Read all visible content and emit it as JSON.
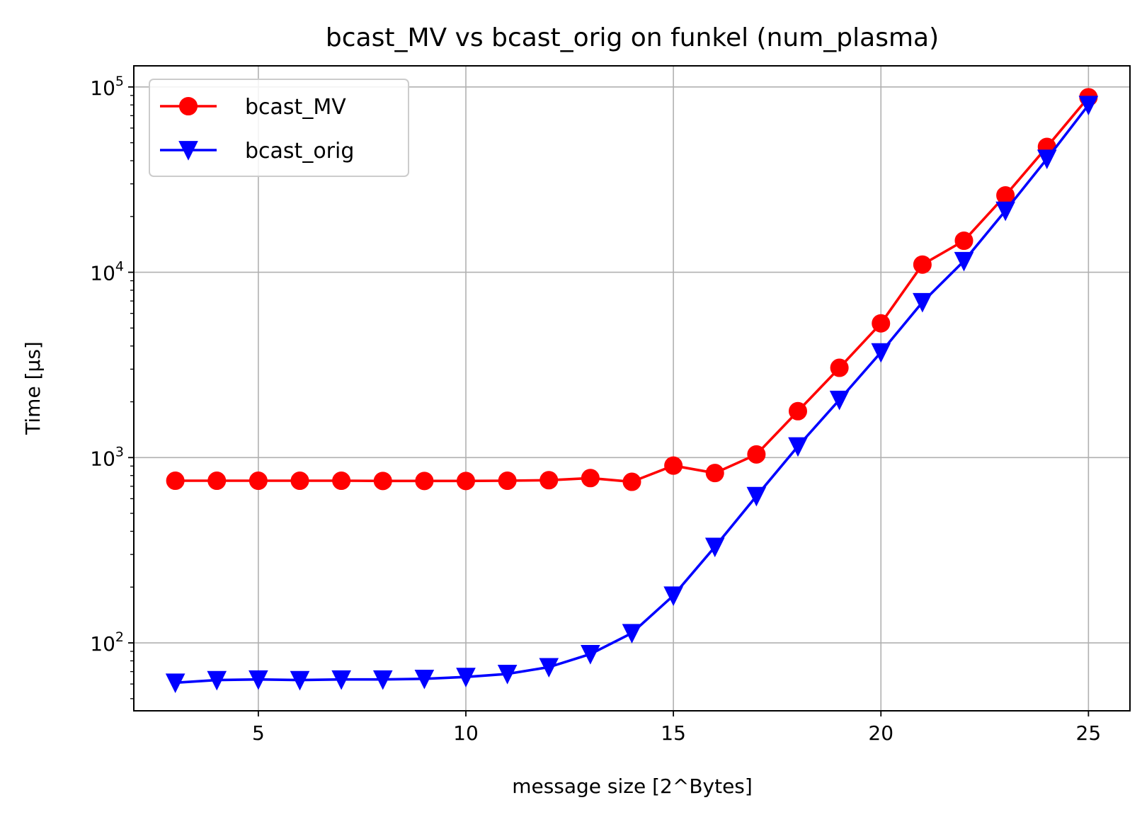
{
  "chart_data": {
    "type": "line",
    "title": "bcast_MV vs bcast_orig on funkel (num_plasma)",
    "xlabel": "message size [2^Bytes]",
    "ylabel": "Time [µs]",
    "yscale": "log",
    "xlim": [
      2,
      26
    ],
    "ylim": [
      43,
      130000
    ],
    "grid": true,
    "legend_position": "upper-left",
    "x_ticks": [
      5,
      10,
      15,
      20,
      25
    ],
    "x_tick_labels": [
      "5",
      "10",
      "15",
      "20",
      "25"
    ],
    "y_ticks": [
      100,
      1000,
      10000,
      100000
    ],
    "y_tick_labels": [
      {
        "base": "10",
        "exp": "2"
      },
      {
        "base": "10",
        "exp": "3"
      },
      {
        "base": "10",
        "exp": "4"
      },
      {
        "base": "10",
        "exp": "5"
      }
    ],
    "x": [
      3,
      4,
      5,
      6,
      7,
      8,
      9,
      10,
      11,
      12,
      13,
      14,
      15,
      16,
      17,
      18,
      19,
      20,
      21,
      22,
      23,
      24,
      25
    ],
    "series": [
      {
        "name": "bcast_MV",
        "color": "#ff0000",
        "marker": "circle",
        "values": [
          750,
          750,
          750,
          750,
          750,
          748,
          748,
          748,
          750,
          755,
          775,
          740,
          905,
          825,
          1040,
          1780,
          3050,
          5300,
          11000,
          14800,
          26000,
          47500,
          88000
        ]
      },
      {
        "name": "bcast_orig",
        "color": "#0000ff",
        "marker": "triangle-down",
        "values": [
          61,
          63,
          63.5,
          63,
          63.5,
          63.5,
          64,
          65.5,
          68,
          74,
          87,
          113,
          180,
          330,
          620,
          1150,
          2050,
          3700,
          6900,
          11500,
          21500,
          41000,
          80000
        ]
      }
    ]
  }
}
